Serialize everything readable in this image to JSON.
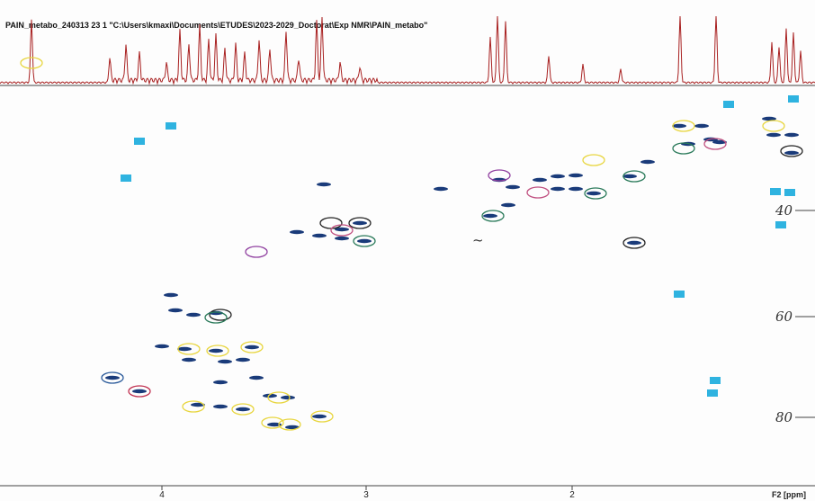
{
  "header": {
    "title": "PAIN_metabo_240313 23 1 \"C:\\Users\\kmaxi\\Documents\\ETUDES\\2023-2029_Doctorat\\Exp NMR\\PAIN_metabo\""
  },
  "x_axis": {
    "label": "F2 [ppm]",
    "ticks": [
      4,
      3,
      2
    ]
  },
  "y_axis": {
    "ticks": [
      40,
      60,
      80
    ]
  }
}
